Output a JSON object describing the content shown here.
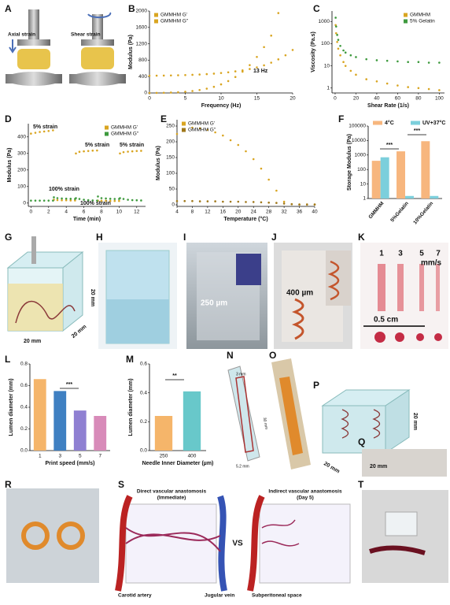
{
  "panel_letters": [
    "A",
    "B",
    "C",
    "D",
    "E",
    "F",
    "G",
    "H",
    "I",
    "J",
    "K",
    "L",
    "M",
    "N",
    "O",
    "P",
    "Q",
    "R",
    "S",
    "T"
  ],
  "image_texts": {
    "A": [
      "Axial strain",
      "Shear strain"
    ],
    "G": [
      "20 mm",
      "20 mm"
    ],
    "H": [
      "20 mm"
    ],
    "I": [
      "250 µm"
    ],
    "J": [
      "400 µm"
    ],
    "K": [
      "1",
      "3",
      "5",
      "7",
      "mm/s",
      "0.5 cm"
    ],
    "N": [
      "3 mm",
      "30 mm",
      "5.2 mm"
    ],
    "P": [
      "20 mm",
      "20 mm",
      "20 mm"
    ],
    "S": [
      "Direct vascular anastomosis",
      "(Immediate)",
      "Indirect vascular anastomosis",
      "(Day 5)",
      "VS",
      "Carotid artery",
      "Jugular vein",
      "Subperitoneal space"
    ]
  },
  "chart_data": [
    {
      "type": "scatter",
      "xlabel": "Frequency (Hz)",
      "ylabel": "Modulus (Pa)",
      "xlim": [
        0,
        20
      ],
      "xticks": [
        0,
        5,
        10,
        15,
        20
      ],
      "ylim": [
        0,
        2000
      ],
      "yticks": [
        0,
        400,
        800,
        1200,
        1600,
        2000
      ],
      "legend": "upper left",
      "annotations": [
        "13 Hz"
      ],
      "series": [
        {
          "name": "GMMHM G'",
          "color": "#d9a521",
          "x": [
            0,
            1,
            2,
            3,
            4,
            5,
            6,
            7,
            8,
            9,
            10,
            11,
            12,
            13,
            14,
            15,
            16,
            17,
            18,
            19,
            20
          ],
          "values": [
            420,
            422,
            425,
            428,
            432,
            437,
            443,
            450,
            460,
            472,
            487,
            505,
            527,
            553,
            585,
            625,
            675,
            740,
            820,
            920,
            1050
          ]
        },
        {
          "name": "GMMHM G''",
          "color": "#d9a521",
          "x": [
            0,
            1,
            2,
            3,
            4,
            5,
            6,
            7,
            8,
            9,
            10,
            11,
            12,
            13,
            14,
            15,
            16,
            17,
            18
          ],
          "values": [
            0,
            2,
            5,
            10,
            18,
            30,
            48,
            72,
            105,
            150,
            210,
            290,
            390,
            520,
            680,
            880,
            1120,
            1400,
            1950
          ]
        }
      ]
    },
    {
      "type": "scatter",
      "xlabel": "Shear Rate (1/s)",
      "ylabel": "Viscosity (Pa.s)",
      "ylog": true,
      "xlim": [
        -3,
        105
      ],
      "xticks": [
        0,
        20,
        40,
        60,
        80,
        100
      ],
      "ylim": [
        0.6,
        3000
      ],
      "yticks": [
        1,
        10,
        100,
        1000
      ],
      "legend": "upper right",
      "series": [
        {
          "name": "GMMHM",
          "color": "#d9a521",
          "x": [
            0.5,
            1,
            2,
            3,
            5,
            8,
            10,
            15,
            20,
            30,
            40,
            50,
            60,
            70,
            80,
            90,
            100
          ],
          "values": [
            700,
            300,
            120,
            60,
            30,
            15,
            10,
            6,
            4,
            2.5,
            2,
            1.6,
            1.3,
            1.1,
            1,
            0.9,
            0.8
          ]
        },
        {
          "name": "5% Gelatin",
          "color": "#3e9a3e",
          "x": [
            0.5,
            1,
            2,
            3,
            5,
            8,
            10,
            15,
            20,
            30,
            40,
            50,
            60,
            70,
            80,
            90,
            100
          ],
          "values": [
            1500,
            600,
            250,
            150,
            80,
            50,
            40,
            30,
            25,
            20,
            18,
            17,
            16,
            15,
            15,
            14,
            14
          ]
        }
      ]
    },
    {
      "type": "scatter",
      "xlabel": "Time (min)",
      "ylabel": "Modulus (Pa)",
      "xlim": [
        -0.3,
        13
      ],
      "xticks": [
        0,
        2,
        4,
        6,
        8,
        10,
        12
      ],
      "ylim": [
        -20,
        480
      ],
      "yticks": [
        0,
        100,
        200,
        300,
        400
      ],
      "legend": "upper right",
      "annotations": [
        "5% strain",
        "100% strain",
        "5% strain",
        "100% strain",
        "5% strain"
      ],
      "series": [
        {
          "name": "GMMHM G'",
          "color": "#d9a521",
          "x": [
            0,
            0.5,
            1,
            1.5,
            2,
            2.5,
            2.6,
            3,
            3.5,
            4,
            4.5,
            5,
            5.1,
            5.5,
            6,
            6.5,
            7,
            7.5,
            7.6,
            8,
            8.5,
            9,
            9.5,
            10,
            10.1,
            10.5,
            11,
            11.5,
            12,
            12.5
          ],
          "values": [
            420,
            425,
            430,
            433,
            436,
            440,
            20,
            18,
            17,
            17,
            16,
            16,
            300,
            310,
            313,
            315,
            317,
            318,
            15,
            14,
            14,
            13,
            13,
            13,
            300,
            308,
            311,
            313,
            315,
            316
          ]
        },
        {
          "name": "GMMHM G''",
          "color": "#3e9a3e",
          "x": [
            0,
            0.5,
            1,
            1.5,
            2,
            2.5,
            2.6,
            3,
            3.5,
            4,
            4.5,
            5,
            5.1,
            5.5,
            6,
            6.5,
            7,
            7.5,
            7.6,
            8,
            8.5,
            9,
            9.5,
            10,
            10.1,
            10.5,
            11,
            11.5,
            12,
            12.5
          ],
          "values": [
            15,
            15,
            15,
            15,
            15,
            15,
            35,
            30,
            28,
            27,
            26,
            25,
            30,
            25,
            20,
            18,
            16,
            15,
            40,
            30,
            28,
            26,
            25,
            25,
            30,
            25,
            20,
            18,
            17,
            16
          ]
        }
      ]
    },
    {
      "type": "scatter",
      "xlabel": "Temperature (°C)",
      "ylabel": "Modulus (Pa)",
      "xlim": [
        4,
        40
      ],
      "xticks": [
        4,
        8,
        12,
        16,
        20,
        24,
        28,
        32,
        36,
        40
      ],
      "ylim": [
        -5,
        270
      ],
      "yticks": [
        0,
        50,
        100,
        150,
        200,
        250
      ],
      "legend": "upper left",
      "series": [
        {
          "name": "GMMHM G'",
          "color": "#d9a521",
          "x": [
            4,
            6,
            8,
            10,
            12,
            14,
            16,
            18,
            20,
            22,
            24,
            26,
            28,
            30,
            32,
            34,
            36,
            38,
            40
          ],
          "values": [
            225,
            240,
            245,
            243,
            238,
            230,
            220,
            205,
            190,
            170,
            145,
            115,
            80,
            45,
            10,
            2,
            1,
            1,
            1
          ]
        },
        {
          "name": "GMMHM G''",
          "color": "#a0781a",
          "x": [
            4,
            6,
            8,
            10,
            12,
            14,
            16,
            18,
            20,
            22,
            24,
            26,
            28,
            30,
            32,
            34,
            36,
            38,
            40
          ],
          "values": [
            12,
            12,
            12,
            11,
            11,
            11,
            10,
            10,
            10,
            9,
            9,
            8,
            7,
            6,
            4,
            2,
            1,
            1,
            1
          ]
        }
      ]
    },
    {
      "type": "bar",
      "ylabel": "Storage Modulus (Pa)",
      "ylog": true,
      "categories": [
        "GMMHM",
        "5%Gelatin",
        "10%Gelatin"
      ],
      "ylim": [
        1,
        100000
      ],
      "yticks": [
        1,
        10,
        100,
        1000,
        10000,
        100000
      ],
      "legend": "top",
      "annotations": [
        "***",
        "***"
      ],
      "series": [
        {
          "name": "4°C",
          "color": "#f7b67e",
          "values": [
            400,
            1800,
            9000
          ]
        },
        {
          "name": "UV+37°C",
          "color": "#7ccfdc",
          "values": [
            700,
            1.5,
            1.5
          ]
        }
      ]
    },
    {
      "type": "bar",
      "xlabel": "Print speed (mm/s)",
      "ylabel": "Lumen diameter (mm)",
      "categories": [
        "1",
        "3",
        "5",
        "7"
      ],
      "values": [
        0.66,
        0.55,
        0.37,
        0.32
      ],
      "colors": [
        "#f5b56a",
        "#3f80c2",
        "#8f80d2",
        "#d88bb9"
      ],
      "ylim": [
        0,
        0.8
      ],
      "yticks": [
        {
          "value": 0,
          "label": "0.0"
        },
        0.2,
        0.4,
        0.6,
        0.8
      ],
      "annotations": [
        "***"
      ]
    },
    {
      "type": "bar",
      "xlabel": "Needle Inner Diameter (µm)",
      "ylabel": "Lumen diameter (mm)",
      "categories": [
        "250",
        "400"
      ],
      "values": [
        0.24,
        0.41
      ],
      "colors": [
        "#f5b56a",
        "#68c8ca"
      ],
      "ylim": [
        0,
        0.6
      ],
      "yticks": [
        {
          "value": 0,
          "label": "0.0"
        },
        0.2,
        0.4,
        0.6
      ],
      "annotations": [
        "**"
      ]
    }
  ]
}
